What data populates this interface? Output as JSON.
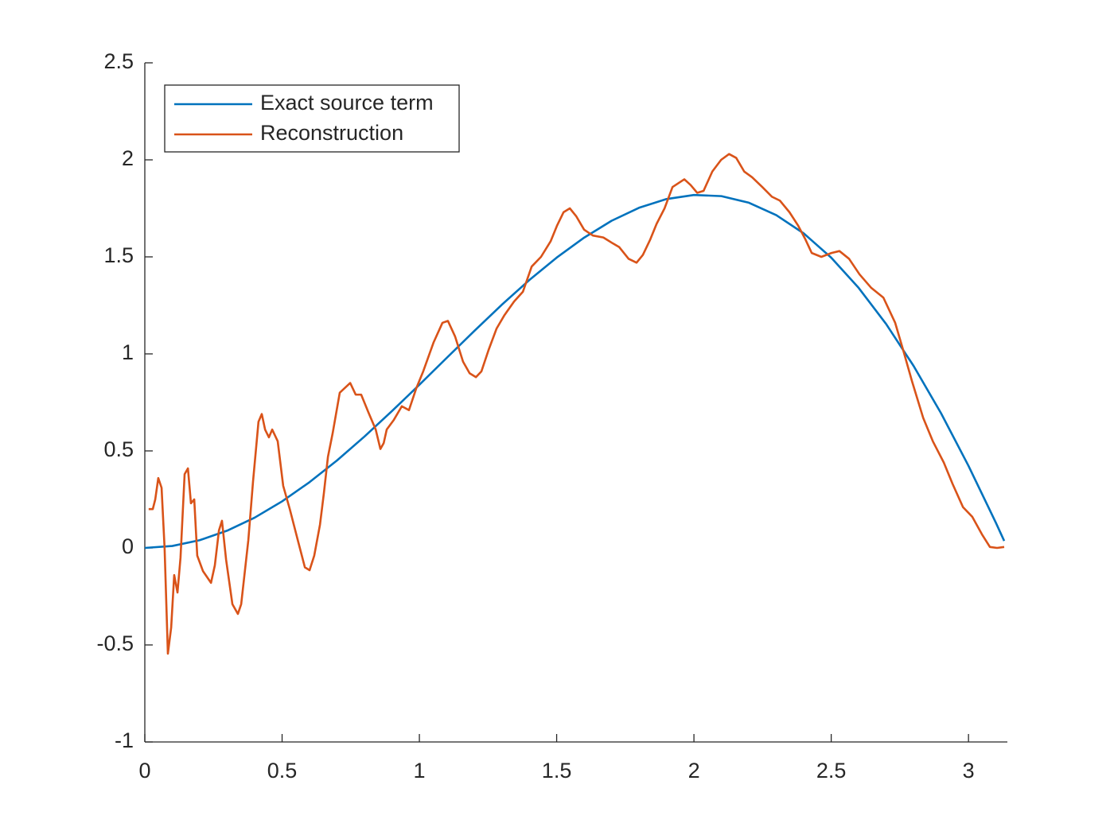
{
  "chart_data": {
    "type": "line",
    "xlim": [
      0,
      3.1416
    ],
    "ylim": [
      -1,
      2.5
    ],
    "xticks": [
      0,
      0.5,
      1,
      1.5,
      2,
      2.5,
      3
    ],
    "yticks": [
      -1,
      -0.5,
      0,
      0.5,
      1,
      1.5,
      2,
      2.5
    ],
    "grid": false,
    "legend": "upper-left",
    "series": [
      {
        "name": "Exact source term",
        "color": "#0072bd",
        "x": [
          0,
          0.1,
          0.2,
          0.3,
          0.4,
          0.5,
          0.6,
          0.7,
          0.8,
          0.9,
          1.0,
          1.1,
          1.2,
          1.3,
          1.4,
          1.5,
          1.6,
          1.7,
          1.8,
          1.9,
          2.0,
          2.1,
          2.2,
          2.3,
          2.4,
          2.5,
          2.6,
          2.7,
          2.8,
          2.9,
          3.0,
          3.1,
          3.13
        ],
        "values": [
          0,
          0.01,
          0.04,
          0.089,
          0.156,
          0.24,
          0.339,
          0.451,
          0.574,
          0.705,
          0.841,
          0.98,
          1.118,
          1.253,
          1.38,
          1.496,
          1.599,
          1.686,
          1.753,
          1.798,
          1.819,
          1.813,
          1.779,
          1.715,
          1.621,
          1.496,
          1.34,
          1.154,
          0.938,
          0.694,
          0.423,
          0.129,
          0.036
        ]
      },
      {
        "name": "Reconstruction",
        "color": "#d95319",
        "x": [
          0.014,
          0.029,
          0.038,
          0.049,
          0.061,
          0.072,
          0.084,
          0.096,
          0.107,
          0.119,
          0.13,
          0.145,
          0.157,
          0.168,
          0.18,
          0.191,
          0.212,
          0.241,
          0.255,
          0.27,
          0.281,
          0.296,
          0.319,
          0.339,
          0.351,
          0.377,
          0.394,
          0.414,
          0.426,
          0.438,
          0.452,
          0.464,
          0.484,
          0.504,
          0.528,
          0.559,
          0.583,
          0.6,
          0.617,
          0.638,
          0.652,
          0.667,
          0.684,
          0.71,
          0.748,
          0.768,
          0.788,
          0.814,
          0.841,
          0.858,
          0.87,
          0.881,
          0.907,
          0.936,
          0.962,
          0.988,
          1.014,
          1.052,
          1.084,
          1.104,
          1.13,
          1.159,
          1.183,
          1.206,
          1.226,
          1.252,
          1.281,
          1.31,
          1.345,
          1.377,
          1.409,
          1.443,
          1.478,
          1.501,
          1.525,
          1.548,
          1.571,
          1.6,
          1.632,
          1.67,
          1.704,
          1.728,
          1.762,
          1.791,
          1.814,
          1.841,
          1.864,
          1.893,
          1.922,
          1.965,
          1.988,
          2.012,
          2.035,
          2.067,
          2.099,
          2.128,
          2.154,
          2.183,
          2.212,
          2.249,
          2.284,
          2.313,
          2.348,
          2.38,
          2.406,
          2.429,
          2.464,
          2.501,
          2.53,
          2.565,
          2.603,
          2.646,
          2.69,
          2.733,
          2.762,
          2.794,
          2.835,
          2.87,
          2.91,
          2.942,
          2.98,
          3.014,
          3.049,
          3.078,
          3.104,
          3.13
        ],
        "values": [
          0.2,
          0.2,
          0.25,
          0.36,
          0.31,
          0,
          -0.545,
          -0.41,
          -0.14,
          -0.23,
          -0.05,
          0.38,
          0.41,
          0.23,
          0.25,
          -0.04,
          -0.12,
          -0.18,
          -0.09,
          0.09,
          0.14,
          -0.06,
          -0.29,
          -0.34,
          -0.29,
          0.04,
          0.34,
          0.65,
          0.69,
          0.61,
          0.57,
          0.61,
          0.55,
          0.32,
          0.2,
          0.03,
          -0.1,
          -0.115,
          -0.04,
          0.12,
          0.28,
          0.47,
          0.59,
          0.8,
          0.85,
          0.79,
          0.79,
          0.7,
          0.61,
          0.51,
          0.54,
          0.61,
          0.66,
          0.73,
          0.71,
          0.82,
          0.91,
          1.06,
          1.16,
          1.17,
          1.09,
          0.96,
          0.9,
          0.88,
          0.91,
          1.02,
          1.13,
          1.2,
          1.27,
          1.32,
          1.45,
          1.5,
          1.58,
          1.66,
          1.73,
          1.75,
          1.71,
          1.64,
          1.61,
          1.6,
          1.57,
          1.55,
          1.49,
          1.47,
          1.51,
          1.59,
          1.67,
          1.75,
          1.86,
          1.9,
          1.87,
          1.83,
          1.84,
          1.94,
          2.0,
          2.03,
          2.01,
          1.94,
          1.91,
          1.86,
          1.81,
          1.79,
          1.73,
          1.66,
          1.59,
          1.52,
          1.5,
          1.52,
          1.53,
          1.49,
          1.41,
          1.34,
          1.29,
          1.16,
          1.02,
          0.86,
          0.67,
          0.55,
          0.44,
          0.33,
          0.21,
          0.16,
          0.07,
          0.005,
          0,
          0.005
        ]
      }
    ]
  }
}
